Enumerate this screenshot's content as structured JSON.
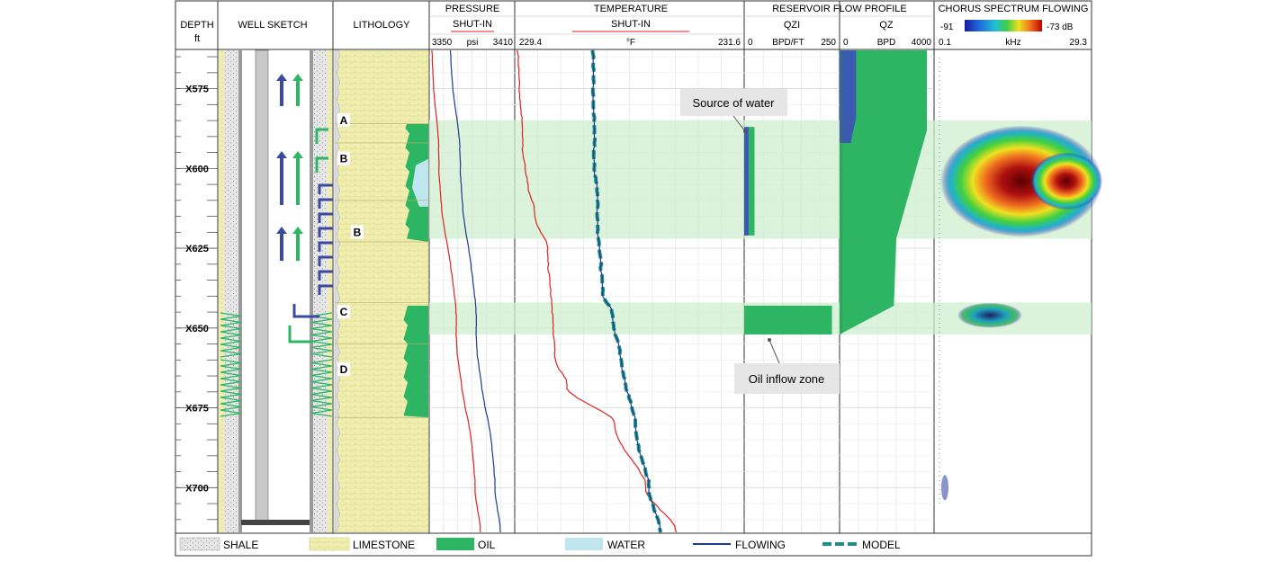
{
  "headers": {
    "depth": "DEPTH",
    "depth_unit": "ft",
    "well_sketch": "WELL SKETCH",
    "lithology": "LITHOLOGY",
    "pressure": "PRESSURE",
    "pressure_sub": "SHUT-IN",
    "pressure_min": "3350",
    "pressure_unit": "psi",
    "pressure_max": "3410",
    "temperature": "TEMPERATURE",
    "temperature_sub": "SHUT-IN",
    "temperature_min": "229.4",
    "temperature_unit": "°F",
    "temperature_max": "231.6",
    "flow_profile": "RESERVOIR FLOW PROFILE",
    "qzi": "QZI",
    "qzi_min": "0",
    "qzi_unit": "BPD/FT",
    "qzi_max": "250",
    "qz": "QZ",
    "qz_min": "0",
    "qz_unit": "BPD",
    "qz_max": "4000",
    "spectrum": "CHORUS SPECTRUM FLOWING",
    "spectrum_min_db": "-91",
    "spectrum_max_db": "-73 dB",
    "spectrum_min_khz": "0.1",
    "spectrum_unit": "kHz",
    "spectrum_max_khz": "29.3"
  },
  "depth_labels": [
    "X575",
    "X600",
    "X625",
    "X650",
    "X675",
    "X700"
  ],
  "zone_labels": [
    "A",
    "B",
    "B",
    "C",
    "D"
  ],
  "annotations": {
    "source_of_water": "Source of water",
    "oil_inflow_zone": "Oil inflow zone"
  },
  "legend": [
    {
      "label": "SHALE"
    },
    {
      "label": "LIMESTONE"
    },
    {
      "label": "OIL"
    },
    {
      "label": "WATER"
    },
    {
      "label": "FLOWING"
    },
    {
      "label": "MODEL"
    }
  ],
  "colors": {
    "oil": "#2db563",
    "water": "#bfe6ef",
    "limestone": "#f1efb0",
    "shale": "#dcdcdc",
    "flowing": "#1d3a8f",
    "shut_in": "#e02020",
    "model": "#1c8f86",
    "qzi_water": "#3a5ab0",
    "zone_band": "#cfeecf"
  },
  "chart_data": {
    "type": "line",
    "depth_axis": {
      "label": "DEPTH",
      "unit": "ft",
      "min": 563,
      "max": 714,
      "ticks": [
        "X575",
        "X600",
        "X625",
        "X650",
        "X675",
        "X700"
      ]
    },
    "zones": [
      {
        "name": "A",
        "top": 585,
        "bottom": 592
      },
      {
        "name": "B",
        "top": 592,
        "bottom": 622
      },
      {
        "name": "C",
        "top": 642,
        "bottom": 652
      }
    ],
    "pressure": {
      "unit": "psi",
      "range": [
        3350,
        3410
      ],
      "series": [
        {
          "name": "SHUT-IN",
          "depth": [
            563,
            600,
            650,
            700,
            714
          ],
          "value": [
            3352,
            3357,
            3369,
            3382,
            3386
          ]
        },
        {
          "name": "FLOWING",
          "depth": [
            563,
            600,
            650,
            700,
            714
          ],
          "value": [
            3365,
            3372,
            3383,
            3396,
            3400
          ]
        }
      ]
    },
    "temperature": {
      "unit": "°F",
      "range": [
        229.4,
        231.6
      ],
      "series": [
        {
          "name": "SHUT-IN",
          "depth": [
            563,
            590,
            605,
            615,
            625,
            640,
            660,
            668,
            680,
            700,
            714
          ],
          "value": [
            229.43,
            229.47,
            229.52,
            229.6,
            229.71,
            229.75,
            229.79,
            229.9,
            230.35,
            230.65,
            230.95
          ]
        },
        {
          "name": "FLOWING",
          "depth": [
            563,
            590,
            620,
            640,
            645,
            660,
            680,
            700,
            714
          ],
          "value": [
            230.15,
            230.16,
            230.2,
            230.25,
            230.33,
            230.42,
            230.55,
            230.68,
            230.8
          ]
        },
        {
          "name": "MODEL",
          "depth": [
            563,
            590,
            620,
            640,
            645,
            660,
            680,
            700,
            714
          ],
          "value": [
            230.15,
            230.16,
            230.2,
            230.25,
            230.33,
            230.42,
            230.55,
            230.68,
            230.8
          ]
        }
      ]
    },
    "qzi": {
      "unit": "BPD/FT",
      "range": [
        0,
        250
      ],
      "bars": [
        {
          "name": "water",
          "top": 587,
          "bottom": 621,
          "value": 12
        },
        {
          "name": "oil",
          "top": 587,
          "bottom": 621,
          "value": 20
        },
        {
          "name": "oil",
          "top": 643,
          "bottom": 652,
          "value": 230
        }
      ]
    },
    "qz": {
      "unit": "BPD",
      "range": [
        0,
        4000
      ],
      "profile": {
        "depth": [
          563,
          588,
          622,
          643,
          652,
          714
        ],
        "value": [
          3700,
          3700,
          2400,
          2300,
          0,
          0
        ]
      },
      "water_top": {
        "depth": [
          563,
          584
        ],
        "value": 700
      }
    },
    "spectrum": {
      "unit": "kHz",
      "range": [
        0.1,
        29.3
      ],
      "db_range": [
        -91,
        -73
      ]
    }
  }
}
